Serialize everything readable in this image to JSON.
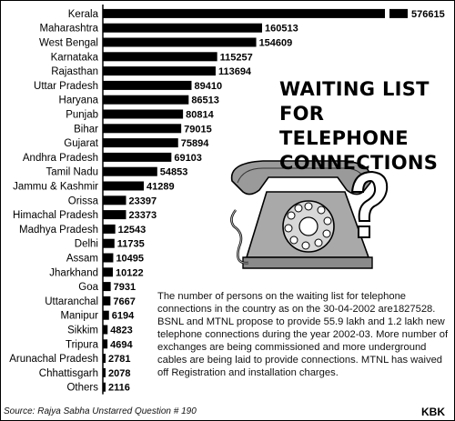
{
  "title": "WAITING LIST\nFOR TELEPHONE\nCONNECTIONS",
  "note": "The number of persons on the waiting list for telephone connections in the country as on the 30-04-2002 are1827528. BSNL and MTNL propose to provide 55.9 lakh and 1.2 lakh new telephone connections during the year 2002-03. More number of exchanges are being commissioned and more underground cables are being laid to provide connections. MTNL has waived off Registration and installation charges.",
  "source": "Source: Rajya Sabha Unstarred Question # 190",
  "credit": "KBK",
  "chart_data": {
    "type": "bar",
    "orientation": "horizontal",
    "axis_break_on_top_bar": true,
    "bar_color": "#000000",
    "categories": [
      "Kerala",
      "Maharashtra",
      "West Bengal",
      "Karnataka",
      "Rajasthan",
      "Uttar Pradesh",
      "Haryana",
      "Punjab",
      "Bihar",
      "Gujarat",
      "Andhra Pradesh",
      "Tamil Nadu",
      "Jammu & Kashmir",
      "Orissa",
      "Himachal Pradesh",
      "Madhya Pradesh",
      "Delhi",
      "Assam",
      "Jharkhand",
      "Goa",
      "Uttaranchal",
      "Manipur",
      "Sikkim",
      "Tripura",
      "Arunachal Pradesh",
      "Chhattisgarh",
      "Others"
    ],
    "values": [
      576615,
      160513,
      154609,
      115257,
      113694,
      89410,
      86513,
      80814,
      79015,
      75894,
      69103,
      54853,
      41289,
      23397,
      23373,
      12543,
      11735,
      10495,
      10122,
      7931,
      7667,
      6194,
      4823,
      4694,
      2781,
      2078,
      2116
    ],
    "value_labels": [
      "576615",
      "160513",
      "154609",
      "115257",
      "113694",
      "89410",
      "86513",
      "80814",
      "79015",
      "75894",
      "69103",
      "54853",
      "41289",
      "23397",
      "23373",
      "12543",
      "11735",
      "10495",
      "10122",
      "7931",
      "7667",
      "6194",
      "4823",
      "4694",
      "2781",
      "2078",
      "2116"
    ]
  }
}
